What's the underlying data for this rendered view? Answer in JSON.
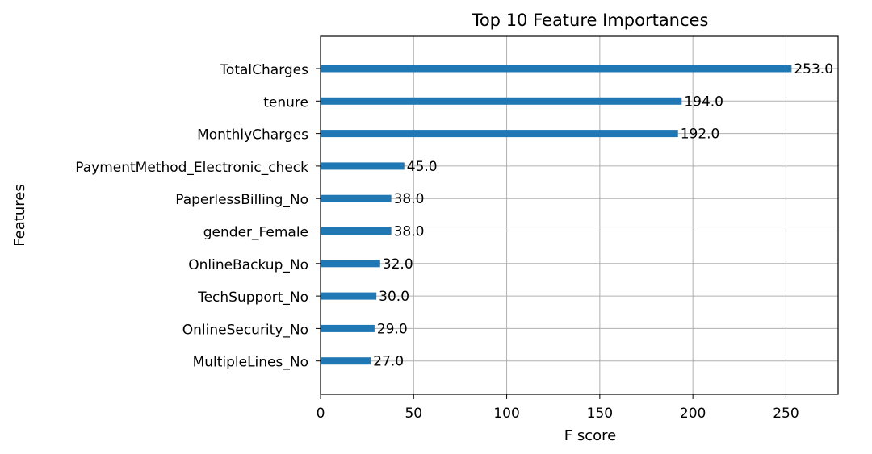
{
  "chart_data": {
    "type": "bar",
    "orientation": "horizontal",
    "title": "Top 10 Feature Importances",
    "xlabel": "F score",
    "ylabel": "Features",
    "categories": [
      "TotalCharges",
      "tenure",
      "MonthlyCharges",
      "PaymentMethod_Electronic_check",
      "PaperlessBilling_No",
      "gender_Female",
      "OnlineBackup_No",
      "TechSupport_No",
      "OnlineSecurity_No",
      "MultipleLines_No"
    ],
    "values": [
      253.0,
      194.0,
      192.0,
      45.0,
      38.0,
      38.0,
      32.0,
      30.0,
      29.0,
      27.0
    ],
    "value_labels": [
      "253.0",
      "194.0",
      "192.0",
      "45.0",
      "38.0",
      "38.0",
      "32.0",
      "30.0",
      "29.0",
      "27.0"
    ],
    "xlim": [
      0,
      278
    ],
    "xticks": [
      0,
      50,
      100,
      150,
      200,
      250
    ],
    "grid": true,
    "bar_color": "#1f77b4"
  }
}
